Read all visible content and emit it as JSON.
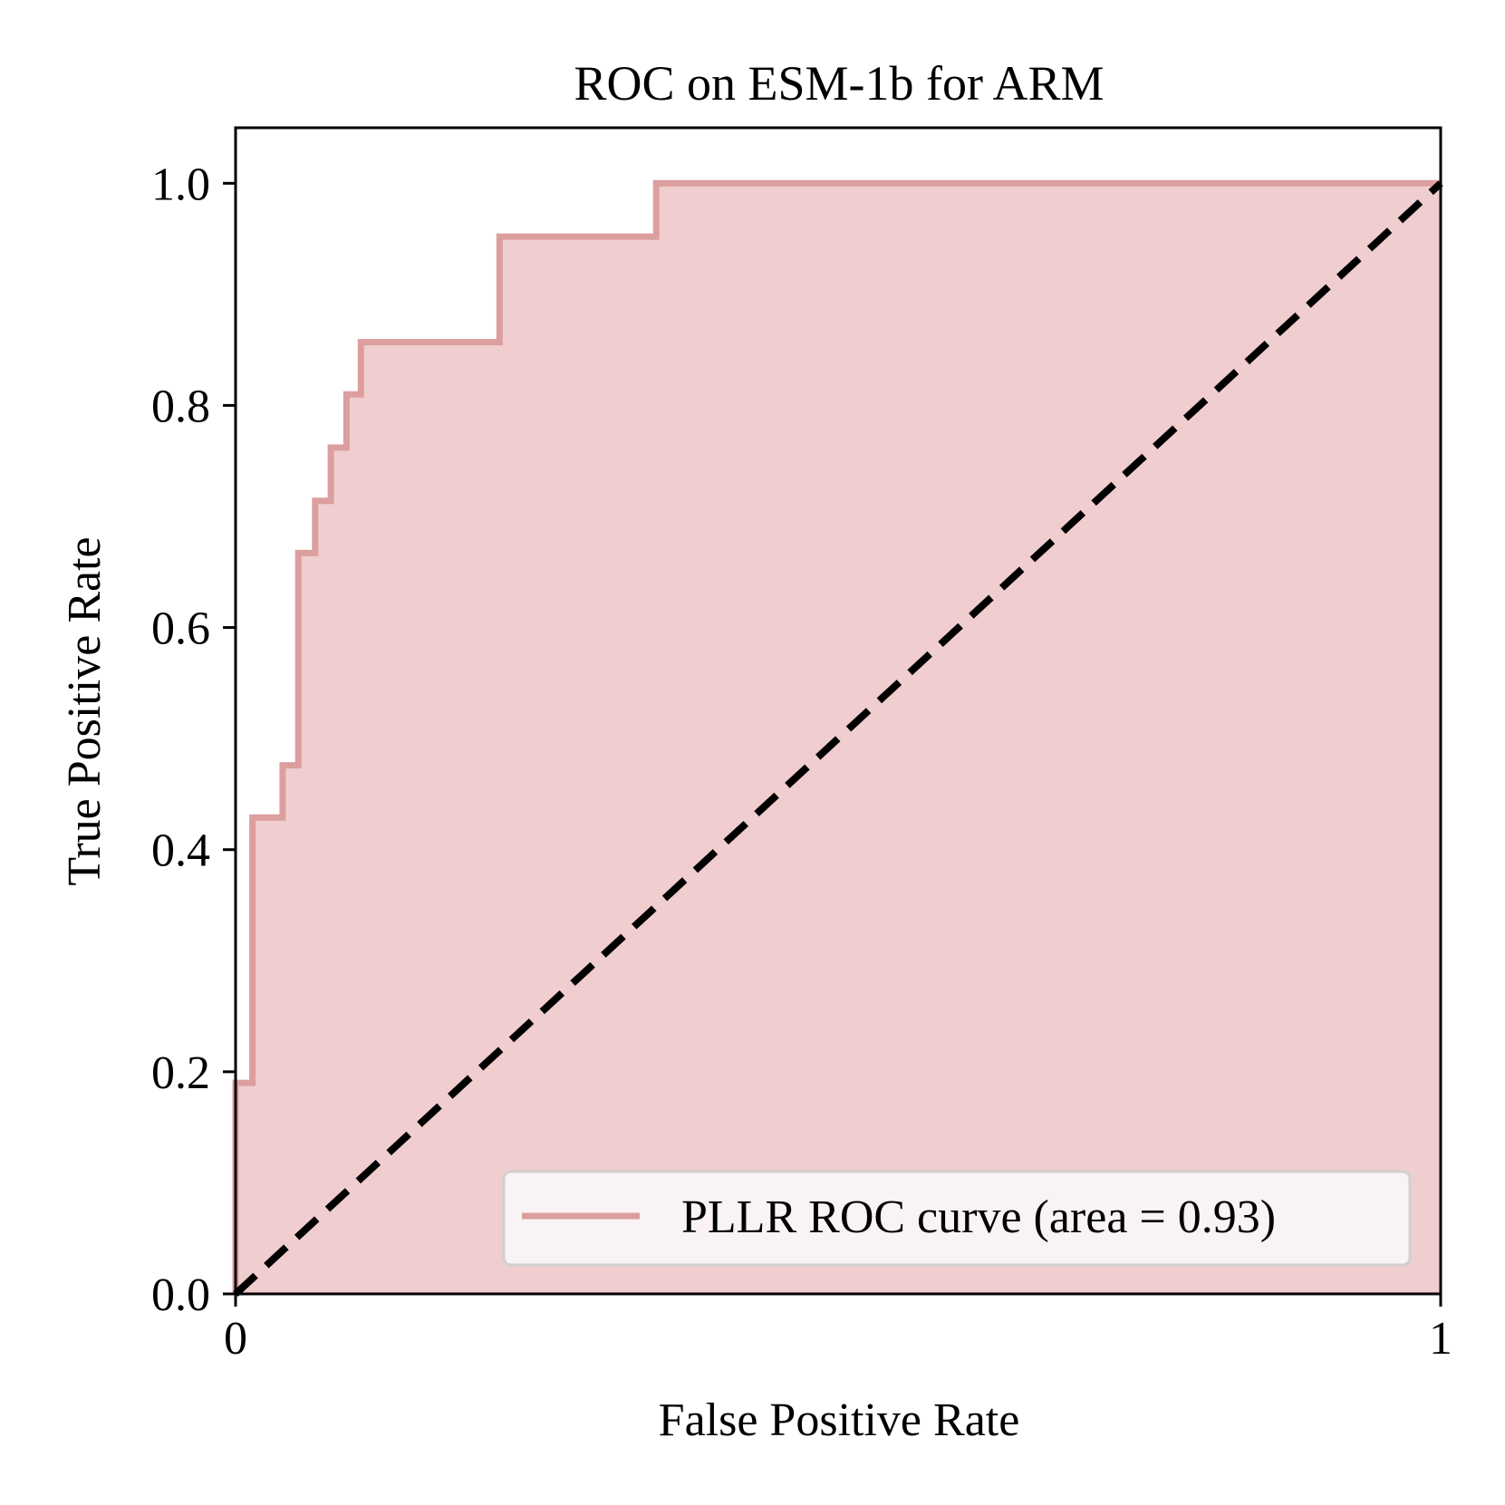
{
  "chart_data": {
    "type": "line",
    "title": "ROC on ESM-1b for ARM",
    "xlabel": "False Positive Rate",
    "ylabel": "True Positive Rate",
    "xlim": [
      0,
      1
    ],
    "ylim": [
      0,
      1.05
    ],
    "x_ticks": [
      0,
      1
    ],
    "x_tick_labels": [
      "0",
      "1"
    ],
    "y_ticks": [
      0.0,
      0.2,
      0.4,
      0.6,
      0.8,
      1.0
    ],
    "y_tick_labels": [
      "0.0",
      "0.2",
      "0.4",
      "0.6",
      "0.8",
      "1.0"
    ],
    "grid": false,
    "legend_position": "lower-right",
    "series": [
      {
        "name": "PLLR ROC curve (area = 0.93)",
        "color": "#dc9e9e",
        "fill_color": "#f0cdce",
        "step": true,
        "x": [
          0.0,
          0.0,
          0.014,
          0.014,
          0.039,
          0.039,
          0.052,
          0.052,
          0.066,
          0.066,
          0.079,
          0.079,
          0.092,
          0.092,
          0.104,
          0.104,
          0.219,
          0.219,
          0.349,
          0.349,
          1.0
        ],
        "y": [
          0.0,
          0.19,
          0.19,
          0.429,
          0.429,
          0.476,
          0.476,
          0.667,
          0.667,
          0.714,
          0.714,
          0.762,
          0.762,
          0.81,
          0.81,
          0.857,
          0.857,
          0.952,
          0.952,
          1.0,
          1.0
        ]
      },
      {
        "name": "",
        "color": "#000000",
        "dashed": true,
        "x": [
          0,
          1
        ],
        "y": [
          0,
          1
        ]
      }
    ]
  }
}
